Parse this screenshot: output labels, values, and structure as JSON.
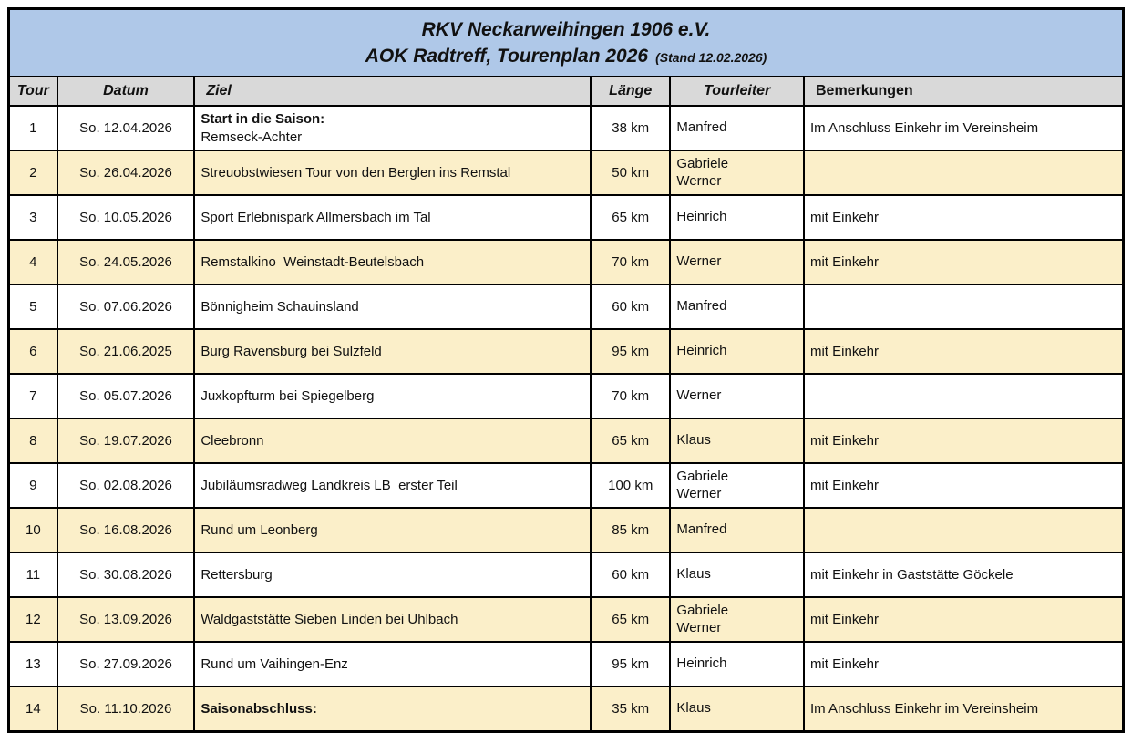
{
  "title": {
    "line1": "RKV Neckarweihingen 1906 e.V.",
    "line2": "AOK Radtreff, Tourenplan 2026",
    "stand": "(Stand 12.02.2026)"
  },
  "columns": [
    "Tour",
    "Datum",
    "Ziel",
    "Länge",
    "Tourleiter",
    "Bemerkungen"
  ],
  "colors": {
    "title_band_blue": "#afc8e8",
    "column_header_gray": "#d9d9d9",
    "row_cream": "#fbefc9",
    "row_white": "#ffffff",
    "border_black": "#000000"
  },
  "rows": [
    {
      "tour": "1",
      "datum": "So. 12.04.2026",
      "ziel_bold": "Start in die Saison:",
      "ziel": "Remseck-Achter",
      "laenge": "38 km",
      "tourleiter": "Manfred",
      "bemerkungen": "Im Anschluss Einkehr im Vereinsheim"
    },
    {
      "tour": "2",
      "datum": "So. 26.04.2026",
      "ziel_bold": "",
      "ziel": "Streuobstwiesen Tour von den Berglen ins Remstal",
      "laenge": "50 km",
      "tourleiter": "Gabriele\nWerner",
      "bemerkungen": ""
    },
    {
      "tour": "3",
      "datum": "So. 10.05.2026",
      "ziel_bold": "",
      "ziel": "Sport Erlebnispark Allmersbach im Tal",
      "laenge": "65 km",
      "tourleiter": "Heinrich",
      "bemerkungen": "mit Einkehr"
    },
    {
      "tour": "4",
      "datum": "So. 24.05.2026",
      "ziel_bold": "",
      "ziel": "Remstalkino  Weinstadt-Beutelsbach",
      "laenge": "70 km",
      "tourleiter": "Werner",
      "bemerkungen": "mit Einkehr"
    },
    {
      "tour": "5",
      "datum": "So. 07.06.2026",
      "ziel_bold": "",
      "ziel": "Bönnigheim Schauinsland",
      "laenge": "60 km",
      "tourleiter": "Manfred",
      "bemerkungen": ""
    },
    {
      "tour": "6",
      "datum": "So. 21.06.2025",
      "ziel_bold": "",
      "ziel": "Burg Ravensburg bei Sulzfeld",
      "laenge": "95 km",
      "tourleiter": "Heinrich",
      "bemerkungen": "mit Einkehr"
    },
    {
      "tour": "7",
      "datum": "So. 05.07.2026",
      "ziel_bold": "",
      "ziel": "Juxkopfturm bei Spiegelberg",
      "laenge": "70 km",
      "tourleiter": "Werner",
      "bemerkungen": ""
    },
    {
      "tour": "8",
      "datum": "So. 19.07.2026",
      "ziel_bold": "",
      "ziel": "Cleebronn",
      "laenge": "65 km",
      "tourleiter": "Klaus",
      "bemerkungen": "mit Einkehr"
    },
    {
      "tour": "9",
      "datum": "So. 02.08.2026",
      "ziel_bold": "",
      "ziel": "Jubiläumsradweg Landkreis LB  erster Teil",
      "laenge": "100 km",
      "tourleiter": "Gabriele\nWerner",
      "bemerkungen": "mit Einkehr"
    },
    {
      "tour": "10",
      "datum": "So. 16.08.2026",
      "ziel_bold": "",
      "ziel": "Rund um Leonberg",
      "laenge": "85 km",
      "tourleiter": "Manfred",
      "bemerkungen": ""
    },
    {
      "tour": "11",
      "datum": "So. 30.08.2026",
      "ziel_bold": "",
      "ziel": "Rettersburg",
      "laenge": "60 km",
      "tourleiter": "Klaus",
      "bemerkungen": "mit Einkehr in Gaststätte Göckele"
    },
    {
      "tour": "12",
      "datum": "So. 13.09.2026",
      "ziel_bold": "",
      "ziel": "Waldgaststätte Sieben Linden bei Uhlbach",
      "laenge": "65 km",
      "tourleiter": "Gabriele\nWerner",
      "bemerkungen": "mit Einkehr"
    },
    {
      "tour": "13",
      "datum": "So. 27.09.2026",
      "ziel_bold": "",
      "ziel": "Rund um Vaihingen-Enz",
      "laenge": "95 km",
      "tourleiter": "Heinrich",
      "bemerkungen": "mit Einkehr"
    },
    {
      "tour": "14",
      "datum": "So. 11.10.2026",
      "ziel_bold": "Saisonabschluss:",
      "ziel": "",
      "laenge": "35 km",
      "tourleiter": "Klaus",
      "bemerkungen": "Im Anschluss Einkehr im Vereinsheim"
    }
  ]
}
